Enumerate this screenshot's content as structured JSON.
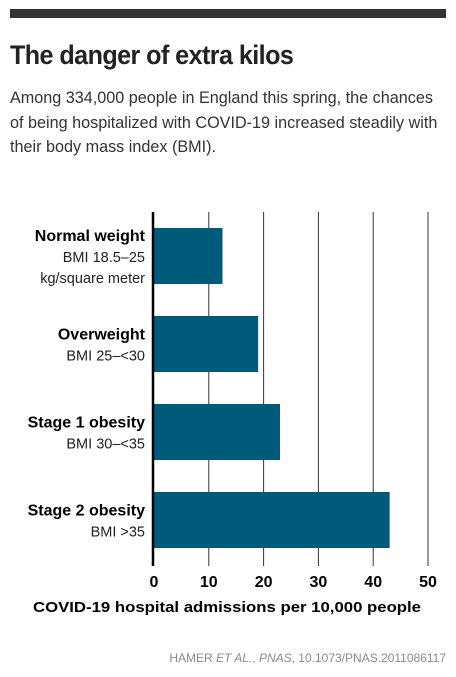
{
  "header": {
    "title": "The danger of extra kilos",
    "subtitle": "Among 334,000 people in England this spring, the chances of being hospitalized with COVID-19 increased steadily with their body mass index (BMI)."
  },
  "source": {
    "authors": "HAMER ",
    "et_al": "ET AL.",
    "sep1": ", ",
    "journal": "PNAS",
    "doi": ", 10.1073/PNAS.2011086117"
  },
  "colors": {
    "bar": "#005a7a",
    "axis": "#000000",
    "grid": "#333333",
    "rule": "#333333"
  },
  "chart_data": {
    "type": "bar",
    "orientation": "horizontal",
    "categories": [
      {
        "name": "Normal weight",
        "detail": [
          "BMI 18.5–25",
          "kg/square meter"
        ]
      },
      {
        "name": "Overweight",
        "detail": [
          "BMI 25–<30"
        ]
      },
      {
        "name": "Stage 1 obesity",
        "detail": [
          "BMI 30–<35"
        ]
      },
      {
        "name": "Stage 2 obesity",
        "detail": [
          "BMI >35"
        ]
      }
    ],
    "values": [
      12.5,
      19,
      23,
      43
    ],
    "xlabel": "COVID-19 hospital admissions per 10,000 people",
    "xlim": [
      0,
      50
    ],
    "xticks": [
      "0",
      "10",
      "20",
      "30",
      "40",
      "50"
    ],
    "grid": "vertical",
    "legend": "none"
  }
}
